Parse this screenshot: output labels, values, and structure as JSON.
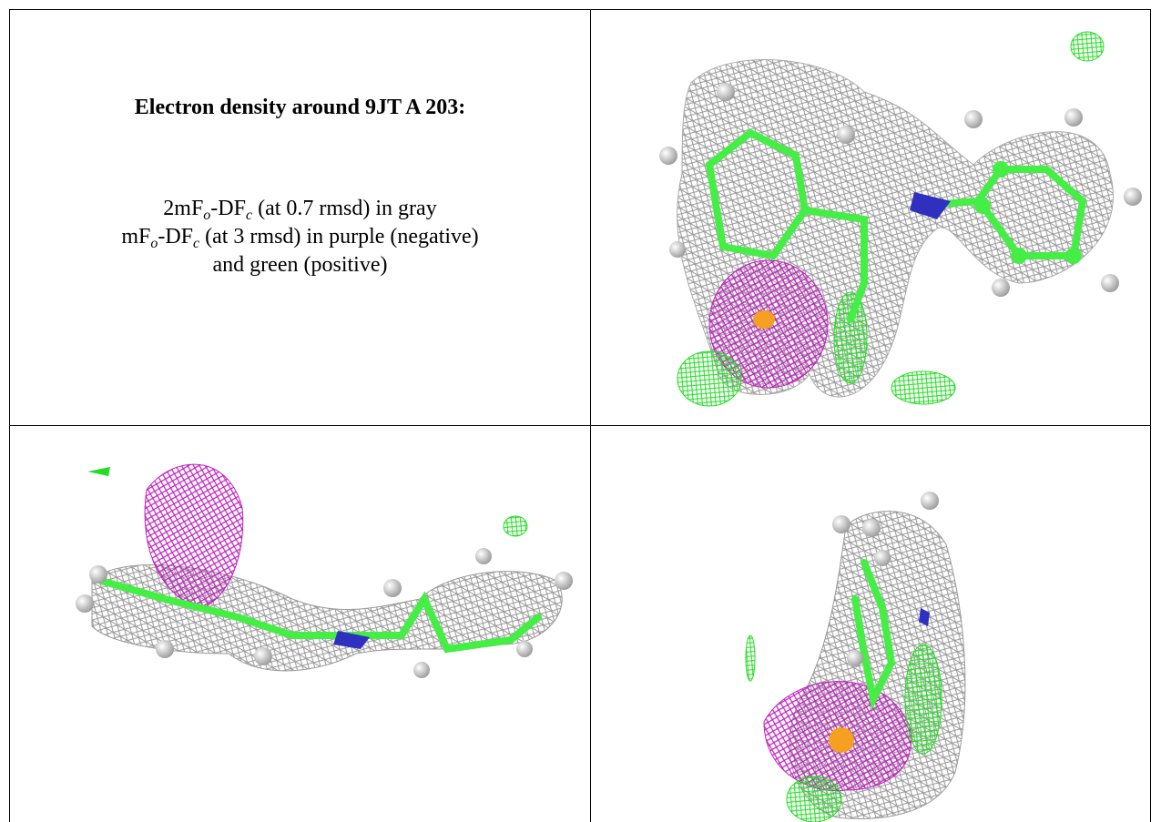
{
  "caption": {
    "title": "Electron density around 9JT A 203:",
    "lines": [
      [
        "2mF",
        "o",
        "-DF",
        "c",
        " (at 0.7 rmsd) in gray"
      ],
      [
        "mF",
        "o",
        "-DF",
        "c",
        " (at 3 rmsd) in purple (negative)"
      ],
      [
        "and green (positive)"
      ]
    ]
  }
}
